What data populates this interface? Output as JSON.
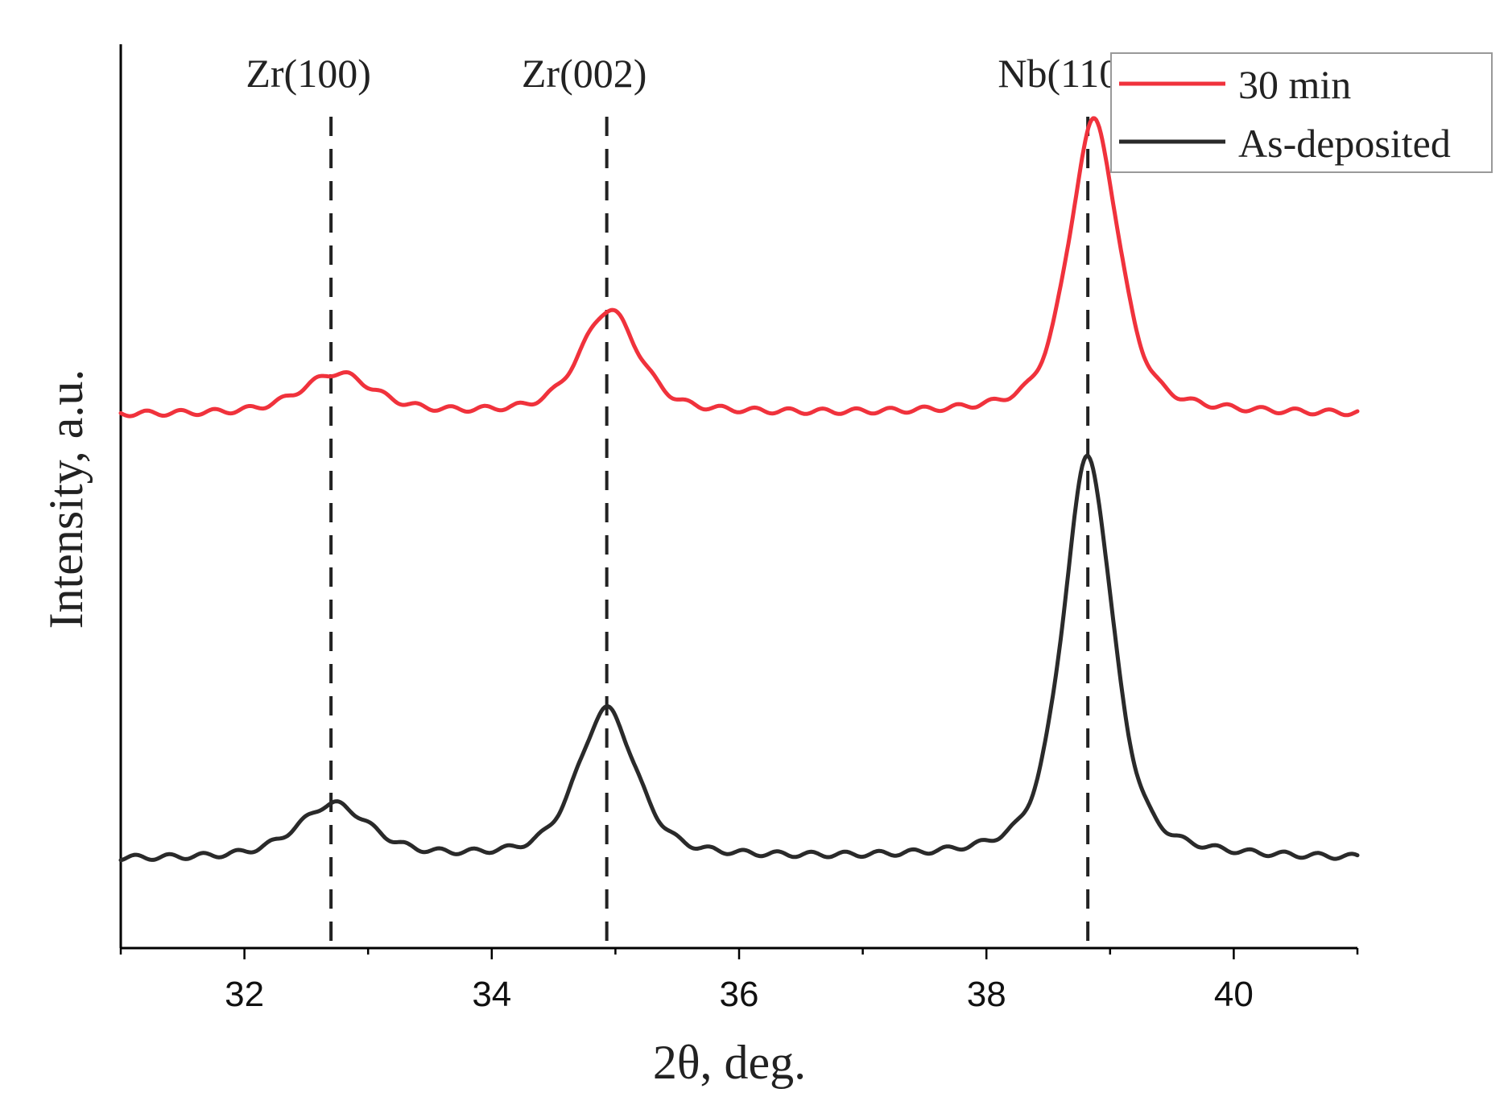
{
  "chart_data": {
    "type": "line",
    "title": "",
    "xlabel": "2θ,  deg.",
    "ylabel": "Intensity, a.u.",
    "xlim": [
      31,
      41
    ],
    "ylim": [
      0,
      1
    ],
    "x_ticks": [
      32,
      34,
      36,
      38,
      40
    ],
    "x_tick_labels": [
      "32",
      "34",
      "36",
      "38",
      "40"
    ],
    "grid": false,
    "legend_position": "top-right",
    "reference_lines": [
      {
        "label": "Zr(100)",
        "x": 32.7
      },
      {
        "label": "Zr(002)",
        "x": 34.93
      },
      {
        "label": "Nb(110)",
        "x": 38.82
      }
    ],
    "series": [
      {
        "name": "30 min",
        "color": "#f0323c",
        "baseline": 0.59,
        "peaks": [
          {
            "center": 32.75,
            "height": 0.045,
            "width": 0.35
          },
          {
            "center": 34.95,
            "height": 0.115,
            "width": 0.28
          },
          {
            "center": 38.87,
            "height": 0.325,
            "width": 0.24
          }
        ]
      },
      {
        "name": "As-deposited",
        "color": "#2a2a2a",
        "baseline": 0.098,
        "peaks": [
          {
            "center": 32.72,
            "height": 0.06,
            "width": 0.35
          },
          {
            "center": 34.93,
            "height": 0.165,
            "width": 0.28
          },
          {
            "center": 38.82,
            "height": 0.445,
            "width": 0.24
          }
        ]
      }
    ]
  }
}
